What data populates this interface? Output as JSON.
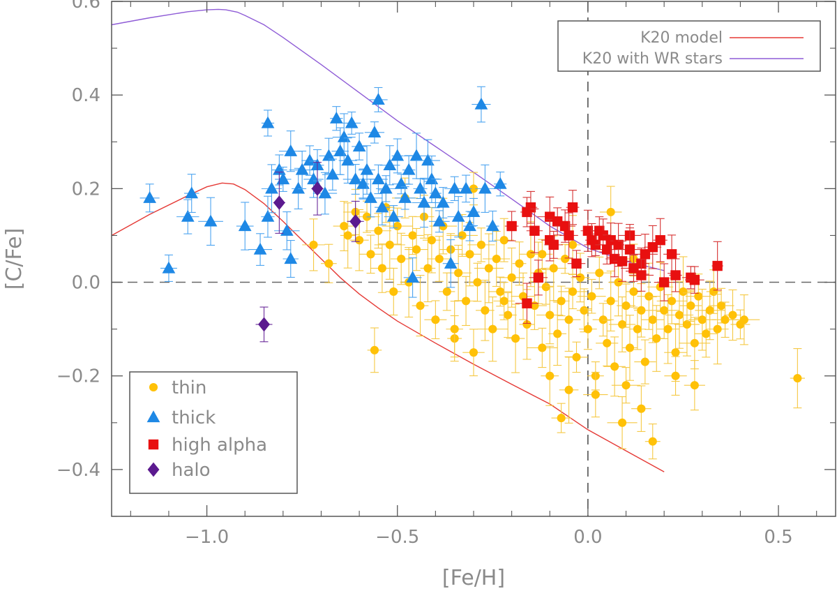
{
  "chart_data": {
    "type": "scatter",
    "xlabel": "[Fe/H]",
    "ylabel": "[C/Fe]",
    "xlim": [
      -1.25,
      0.65
    ],
    "ylim": [
      -0.5,
      0.6
    ],
    "xticks": [
      -1.0,
      -0.5,
      0.0,
      0.5
    ],
    "xtick_labels": [
      "−1.0",
      "−0.5",
      "0.0",
      "0.5"
    ],
    "yticks": [
      -0.4,
      -0.2,
      0.0,
      0.2,
      0.4,
      0.6
    ],
    "ytick_labels": [
      "−0.4",
      "−0.2",
      "0.0",
      "0.2",
      "0.4",
      "0.6"
    ],
    "reference_lines": [
      {
        "orientation": "horizontal",
        "value": 0.0,
        "style": "dashed"
      },
      {
        "orientation": "vertical",
        "value": 0.0,
        "style": "dashed"
      }
    ],
    "model_legend": {
      "position": "top-right",
      "entries": [
        "K20 model",
        "K20 with WR stars"
      ]
    },
    "population_legend": {
      "position": "bottom-left",
      "entries": [
        "thin",
        "thick",
        "high alpha",
        "halo"
      ]
    },
    "models": [
      {
        "name": "K20 model",
        "color": "#e53935",
        "x": [
          -1.25,
          -1.15,
          -1.05,
          -1.0,
          -0.96,
          -0.93,
          -0.9,
          -0.85,
          -0.8,
          -0.75,
          -0.7,
          -0.65,
          -0.6,
          -0.55,
          -0.5,
          -0.4,
          -0.3,
          -0.2,
          -0.1,
          0.0,
          0.1,
          0.2
        ],
        "y": [
          0.1,
          0.145,
          0.185,
          0.204,
          0.212,
          0.21,
          0.198,
          0.168,
          0.13,
          0.09,
          0.05,
          0.01,
          -0.025,
          -0.055,
          -0.083,
          -0.13,
          -0.175,
          -0.218,
          -0.26,
          -0.315,
          -0.36,
          -0.405
        ]
      },
      {
        "name": "K20 with WR stars",
        "color": "#8e5bd6",
        "x": [
          -1.25,
          -1.15,
          -1.05,
          -1.0,
          -0.97,
          -0.95,
          -0.92,
          -0.9,
          -0.85,
          -0.8,
          -0.7,
          -0.6,
          -0.5,
          -0.4,
          -0.3,
          -0.2,
          -0.1,
          0.0,
          0.1,
          0.2
        ],
        "y": [
          0.55,
          0.565,
          0.578,
          0.582,
          0.583,
          0.582,
          0.577,
          0.57,
          0.55,
          0.523,
          0.465,
          0.405,
          0.345,
          0.29,
          0.235,
          0.178,
          0.12,
          0.073,
          0.045,
          0.025
        ]
      }
    ],
    "series": [
      {
        "name": "thin",
        "marker": "circle",
        "color": "#ffc107",
        "errcolor": "#f5c842",
        "points": [
          {
            "x": -0.72,
            "y": 0.08
          },
          {
            "x": -0.68,
            "y": 0.04
          },
          {
            "x": -0.64,
            "y": 0.12
          },
          {
            "x": -0.63,
            "y": 0.1
          },
          {
            "x": -0.61,
            "y": 0.15
          },
          {
            "x": -0.6,
            "y": 0.09
          },
          {
            "x": -0.58,
            "y": 0.14
          },
          {
            "x": -0.57,
            "y": 0.06
          },
          {
            "x": -0.55,
            "y": 0.11
          },
          {
            "x": -0.54,
            "y": 0.03
          },
          {
            "x": -0.53,
            "y": 0.16
          },
          {
            "x": -0.52,
            "y": 0.08
          },
          {
            "x": -0.51,
            "y": -0.02
          },
          {
            "x": -0.5,
            "y": 0.12
          },
          {
            "x": -0.49,
            "y": 0.05
          },
          {
            "x": -0.48,
            "y": 0.18
          },
          {
            "x": -0.47,
            "y": 0.0
          },
          {
            "x": -0.46,
            "y": 0.1
          },
          {
            "x": -0.45,
            "y": 0.07
          },
          {
            "x": -0.44,
            "y": -0.05
          },
          {
            "x": -0.43,
            "y": 0.14
          },
          {
            "x": -0.42,
            "y": 0.03
          },
          {
            "x": -0.41,
            "y": 0.09
          },
          {
            "x": -0.4,
            "y": -0.08
          },
          {
            "x": -0.39,
            "y": 0.05
          },
          {
            "x": -0.38,
            "y": 0.12
          },
          {
            "x": -0.37,
            "y": -0.02
          },
          {
            "x": -0.36,
            "y": 0.07
          },
          {
            "x": -0.35,
            "y": -0.12
          },
          {
            "x": -0.34,
            "y": 0.02
          },
          {
            "x": -0.33,
            "y": 0.1
          },
          {
            "x": -0.32,
            "y": -0.04
          },
          {
            "x": -0.31,
            "y": 0.06
          },
          {
            "x": -0.3,
            "y": -0.15
          },
          {
            "x": -0.29,
            "y": 0.0
          },
          {
            "x": -0.28,
            "y": 0.08
          },
          {
            "x": -0.27,
            "y": -0.06
          },
          {
            "x": -0.26,
            "y": 0.03
          },
          {
            "x": -0.25,
            "y": -0.1
          },
          {
            "x": -0.24,
            "y": 0.05
          },
          {
            "x": -0.23,
            "y": -0.02
          },
          {
            "x": -0.22,
            "y": 0.09
          },
          {
            "x": -0.21,
            "y": -0.07
          },
          {
            "x": -0.2,
            "y": 0.01
          },
          {
            "x": -0.19,
            "y": -0.12
          },
          {
            "x": -0.18,
            "y": 0.04
          },
          {
            "x": -0.17,
            "y": -0.03
          },
          {
            "x": -0.16,
            "y": -0.09
          },
          {
            "x": -0.15,
            "y": 0.06
          },
          {
            "x": -0.14,
            "y": -0.05
          },
          {
            "x": -0.13,
            "y": 0.02
          },
          {
            "x": -0.12,
            "y": -0.14
          },
          {
            "x": -0.11,
            "y": -0.01
          },
          {
            "x": -0.1,
            "y": -0.07
          },
          {
            "x": -0.09,
            "y": 0.03
          },
          {
            "x": -0.08,
            "y": -0.11
          },
          {
            "x": -0.07,
            "y": -0.04
          },
          {
            "x": -0.06,
            "y": 0.05
          },
          {
            "x": -0.05,
            "y": -0.08
          },
          {
            "x": -0.04,
            "y": -0.02
          },
          {
            "x": -0.03,
            "y": -0.16
          },
          {
            "x": -0.02,
            "y": 0.01
          },
          {
            "x": -0.01,
            "y": -0.06
          },
          {
            "x": 0.0,
            "y": -0.1
          },
          {
            "x": 0.01,
            "y": -0.03
          },
          {
            "x": 0.02,
            "y": -0.2
          },
          {
            "x": 0.03,
            "y": 0.02
          },
          {
            "x": 0.04,
            "y": -0.08
          },
          {
            "x": 0.05,
            "y": -0.13
          },
          {
            "x": 0.06,
            "y": -0.04
          },
          {
            "x": 0.07,
            "y": -0.18
          },
          {
            "x": 0.08,
            "y": 0.0
          },
          {
            "x": 0.09,
            "y": -0.09
          },
          {
            "x": 0.1,
            "y": -0.05
          },
          {
            "x": 0.11,
            "y": -0.14
          },
          {
            "x": 0.12,
            "y": -0.02
          },
          {
            "x": 0.13,
            "y": -0.1
          },
          {
            "x": 0.14,
            "y": -0.06
          },
          {
            "x": 0.15,
            "y": -0.17
          },
          {
            "x": 0.16,
            "y": -0.03
          },
          {
            "x": 0.17,
            "y": -0.08
          },
          {
            "x": 0.18,
            "y": -0.12
          },
          {
            "x": 0.19,
            "y": -0.01
          },
          {
            "x": 0.2,
            "y": -0.06
          },
          {
            "x": 0.21,
            "y": -0.1
          },
          {
            "x": 0.22,
            "y": -0.04
          },
          {
            "x": 0.23,
            "y": -0.15
          },
          {
            "x": 0.24,
            "y": -0.07
          },
          {
            "x": 0.25,
            "y": -0.02
          },
          {
            "x": 0.26,
            "y": -0.09
          },
          {
            "x": 0.27,
            "y": -0.05
          },
          {
            "x": 0.28,
            "y": -0.13
          },
          {
            "x": 0.29,
            "y": -0.03
          },
          {
            "x": 0.3,
            "y": -0.08
          },
          {
            "x": 0.31,
            "y": -0.11
          },
          {
            "x": 0.32,
            "y": -0.06
          },
          {
            "x": 0.33,
            "y": -0.02
          },
          {
            "x": 0.34,
            "y": -0.1
          },
          {
            "x": 0.35,
            "y": -0.05
          },
          {
            "x": 0.36,
            "y": -0.08
          },
          {
            "x": 0.38,
            "y": -0.07
          },
          {
            "x": 0.4,
            "y": -0.09
          },
          {
            "x": 0.41,
            "y": -0.08
          },
          {
            "x": -0.56,
            "y": -0.145
          },
          {
            "x": -0.35,
            "y": -0.1
          },
          {
            "x": -0.1,
            "y": -0.2
          },
          {
            "x": -0.05,
            "y": -0.23
          },
          {
            "x": 0.02,
            "y": -0.24
          },
          {
            "x": 0.1,
            "y": -0.22
          },
          {
            "x": 0.14,
            "y": -0.27
          },
          {
            "x": 0.09,
            "y": -0.3
          },
          {
            "x": 0.17,
            "y": -0.34
          },
          {
            "x": 0.23,
            "y": -0.2
          },
          {
            "x": 0.28,
            "y": -0.22
          },
          {
            "x": -0.07,
            "y": -0.29
          },
          {
            "x": 0.55,
            "y": -0.205
          },
          {
            "x": 0.06,
            "y": 0.15
          },
          {
            "x": -0.3,
            "y": 0.2
          },
          {
            "x": -0.22,
            "y": -0.04
          },
          {
            "x": -0.12,
            "y": 0.06
          },
          {
            "x": -0.04,
            "y": 0.08
          },
          {
            "x": 0.12,
            "y": 0.05
          }
        ]
      },
      {
        "name": "thick",
        "marker": "triangle",
        "color": "#1e88e5",
        "errcolor": "#4aa3f0",
        "points": [
          {
            "x": -1.15,
            "y": 0.18
          },
          {
            "x": -1.1,
            "y": 0.03
          },
          {
            "x": -1.05,
            "y": 0.14
          },
          {
            "x": -1.04,
            "y": 0.19
          },
          {
            "x": -0.99,
            "y": 0.13
          },
          {
            "x": -0.9,
            "y": 0.12
          },
          {
            "x": -0.86,
            "y": 0.07
          },
          {
            "x": -0.84,
            "y": 0.34
          },
          {
            "x": -0.84,
            "y": 0.14
          },
          {
            "x": -0.83,
            "y": 0.2
          },
          {
            "x": -0.81,
            "y": 0.24
          },
          {
            "x": -0.8,
            "y": 0.22
          },
          {
            "x": -0.79,
            "y": 0.11
          },
          {
            "x": -0.78,
            "y": 0.28
          },
          {
            "x": -0.78,
            "y": 0.05
          },
          {
            "x": -0.76,
            "y": 0.2
          },
          {
            "x": -0.75,
            "y": 0.24
          },
          {
            "x": -0.73,
            "y": 0.26
          },
          {
            "x": -0.72,
            "y": 0.22
          },
          {
            "x": -0.71,
            "y": 0.25
          },
          {
            "x": -0.69,
            "y": 0.19
          },
          {
            "x": -0.68,
            "y": 0.27
          },
          {
            "x": -0.67,
            "y": 0.23
          },
          {
            "x": -0.66,
            "y": 0.35
          },
          {
            "x": -0.65,
            "y": 0.28
          },
          {
            "x": -0.64,
            "y": 0.31
          },
          {
            "x": -0.63,
            "y": 0.26
          },
          {
            "x": -0.62,
            "y": 0.34
          },
          {
            "x": -0.61,
            "y": 0.22
          },
          {
            "x": -0.6,
            "y": 0.29
          },
          {
            "x": -0.59,
            "y": 0.21
          },
          {
            "x": -0.58,
            "y": 0.24
          },
          {
            "x": -0.57,
            "y": 0.18
          },
          {
            "x": -0.56,
            "y": 0.32
          },
          {
            "x": -0.55,
            "y": 0.39
          },
          {
            "x": -0.55,
            "y": 0.22
          },
          {
            "x": -0.54,
            "y": 0.16
          },
          {
            "x": -0.53,
            "y": 0.2
          },
          {
            "x": -0.52,
            "y": 0.25
          },
          {
            "x": -0.51,
            "y": 0.14
          },
          {
            "x": -0.5,
            "y": 0.27
          },
          {
            "x": -0.49,
            "y": 0.21
          },
          {
            "x": -0.48,
            "y": 0.18
          },
          {
            "x": -0.47,
            "y": 0.24
          },
          {
            "x": -0.46,
            "y": 0.01
          },
          {
            "x": -0.45,
            "y": 0.27
          },
          {
            "x": -0.44,
            "y": 0.2
          },
          {
            "x": -0.43,
            "y": 0.17
          },
          {
            "x": -0.42,
            "y": 0.26
          },
          {
            "x": -0.41,
            "y": 0.22
          },
          {
            "x": -0.4,
            "y": 0.19
          },
          {
            "x": -0.39,
            "y": 0.13
          },
          {
            "x": -0.38,
            "y": 0.17
          },
          {
            "x": -0.36,
            "y": 0.04
          },
          {
            "x": -0.35,
            "y": 0.2
          },
          {
            "x": -0.34,
            "y": 0.14
          },
          {
            "x": -0.32,
            "y": 0.2
          },
          {
            "x": -0.31,
            "y": 0.12
          },
          {
            "x": -0.3,
            "y": 0.15
          },
          {
            "x": -0.28,
            "y": 0.38
          },
          {
            "x": -0.27,
            "y": 0.2
          },
          {
            "x": -0.25,
            "y": 0.12
          },
          {
            "x": -0.23,
            "y": 0.21
          }
        ]
      },
      {
        "name": "high alpha",
        "marker": "square",
        "color": "#e81010",
        "errcolor": "#d63030",
        "points": [
          {
            "x": -0.2,
            "y": 0.12
          },
          {
            "x": -0.16,
            "y": 0.15
          },
          {
            "x": -0.15,
            "y": 0.16
          },
          {
            "x": -0.14,
            "y": 0.11
          },
          {
            "x": -0.13,
            "y": 0.01
          },
          {
            "x": -0.1,
            "y": 0.14
          },
          {
            "x": -0.1,
            "y": 0.09
          },
          {
            "x": -0.09,
            "y": 0.08
          },
          {
            "x": -0.08,
            "y": 0.13
          },
          {
            "x": -0.06,
            "y": 0.12
          },
          {
            "x": -0.05,
            "y": 0.1
          },
          {
            "x": -0.04,
            "y": 0.16
          },
          {
            "x": -0.03,
            "y": 0.04
          },
          {
            "x": -0.16,
            "y": -0.045
          },
          {
            "x": 0.0,
            "y": 0.11
          },
          {
            "x": 0.01,
            "y": 0.09
          },
          {
            "x": 0.02,
            "y": 0.08
          },
          {
            "x": 0.03,
            "y": 0.11
          },
          {
            "x": 0.04,
            "y": 0.1
          },
          {
            "x": 0.05,
            "y": 0.07
          },
          {
            "x": 0.06,
            "y": 0.09
          },
          {
            "x": 0.07,
            "y": 0.05
          },
          {
            "x": 0.08,
            "y": 0.08
          },
          {
            "x": 0.09,
            "y": 0.045
          },
          {
            "x": 0.11,
            "y": 0.1
          },
          {
            "x": 0.11,
            "y": 0.07
          },
          {
            "x": 0.12,
            "y": 0.03
          },
          {
            "x": 0.14,
            "y": 0.04
          },
          {
            "x": 0.15,
            "y": 0.06
          },
          {
            "x": 0.14,
            "y": 0.015
          },
          {
            "x": 0.17,
            "y": 0.075
          },
          {
            "x": 0.19,
            "y": 0.09
          },
          {
            "x": 0.2,
            "y": 0.0
          },
          {
            "x": 0.22,
            "y": 0.06
          },
          {
            "x": 0.23,
            "y": 0.015
          },
          {
            "x": 0.27,
            "y": 0.01
          },
          {
            "x": 0.28,
            "y": 0.005
          },
          {
            "x": 0.34,
            "y": 0.035
          }
        ]
      },
      {
        "name": "halo",
        "marker": "diamond",
        "color": "#5b1a8f",
        "errcolor": "#6a2a9a",
        "points": [
          {
            "x": -0.85,
            "y": -0.09
          },
          {
            "x": -0.81,
            "y": 0.17
          },
          {
            "x": -0.71,
            "y": 0.2
          },
          {
            "x": -0.61,
            "y": 0.13
          }
        ]
      }
    ]
  }
}
